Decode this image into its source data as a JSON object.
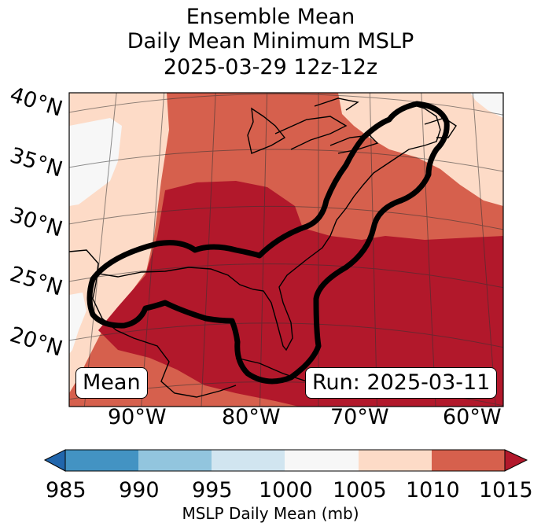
{
  "title": {
    "line1": "Ensemble Mean",
    "line2": "Daily Mean Minimum MSLP",
    "line3": "2025-03-29 12z-12z"
  },
  "map": {
    "mean_box": "Mean",
    "run_box": "Run: 2025-03-11",
    "lat_labels": [
      "40°N",
      "35°N",
      "30°N",
      "25°N",
      "20°N"
    ],
    "lon_labels": [
      "90°W",
      "80°W",
      "70°W",
      "60°W"
    ],
    "contour_description_color": "#000000"
  },
  "colorbar": {
    "ticks": [
      "985",
      "990",
      "995",
      "1000",
      "1005",
      "1010",
      "1015"
    ],
    "label": "MSLP Daily Mean (mb)",
    "colors": [
      "#4393c3",
      "#92c5de",
      "#d1e5f0",
      "#f7f7f7",
      "#fddbc7",
      "#d6604d",
      "#b2182b"
    ],
    "under_color": "#2166ac",
    "over_color": "#b2182b"
  }
}
